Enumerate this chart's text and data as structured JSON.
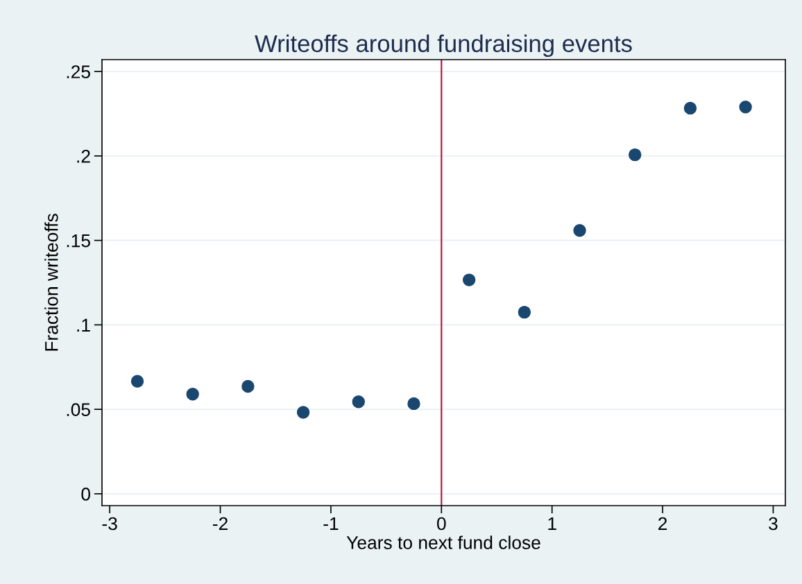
{
  "chart_data": {
    "type": "scatter",
    "title": "Writeoffs around fundraising events",
    "xlabel": "Years to next fund close",
    "ylabel": "Fraction writeoffs",
    "x": [
      -2.75,
      -2.25,
      -1.75,
      -1.25,
      -0.75,
      -0.25,
      0.25,
      0.75,
      1.25,
      1.75,
      2.25,
      2.75
    ],
    "series": [
      {
        "color": "#1a476f",
        "values": [
          0.0666,
          0.059,
          0.0636,
          0.0482,
          0.0545,
          0.0534,
          0.1266,
          0.1075,
          0.1559,
          0.2007,
          0.2283,
          0.229
        ]
      }
    ],
    "xlim": [
      -3.07,
      3.11
    ],
    "ylim": [
      -0.007,
      0.257
    ],
    "xticks": [
      -3,
      -2,
      -1,
      0,
      1,
      2,
      3
    ],
    "yticks": [
      {
        "value": 0,
        "label": "0"
      },
      {
        "value": 0.05,
        "label": ".05"
      },
      {
        "value": 0.1,
        "label": ".1"
      },
      {
        "value": 0.15,
        "label": ".15"
      },
      {
        "value": 0.2,
        "label": ".2"
      },
      {
        "value": 0.25,
        "label": ".25"
      }
    ],
    "ref_lines": [
      {
        "axis": "x",
        "value": 0,
        "color": "#c10534"
      }
    ],
    "grid": "y",
    "marker": "circle"
  }
}
